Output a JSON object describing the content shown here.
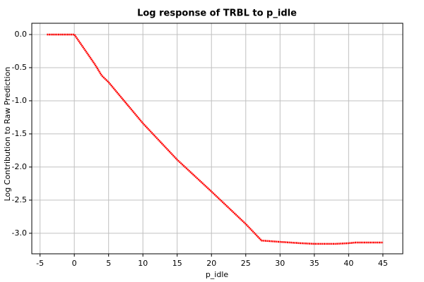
{
  "chart_data": {
    "type": "line",
    "title": "Log response of TRBL to p_idle",
    "x_label": "p_idle",
    "y_label": "Log Contribution to Raw Prediction",
    "x": [
      -4,
      0,
      1,
      3,
      4,
      5,
      10,
      15,
      20,
      25,
      27.3,
      30,
      33,
      35,
      38,
      40,
      41,
      45
    ],
    "series": [
      {
        "name": "p_idle",
        "color": "#ff0000",
        "values": [
          0,
          0,
          -0.15,
          -0.45,
          -0.62,
          -0.72,
          -1.34,
          -1.89,
          -2.37,
          -2.86,
          -3.11,
          -3.13,
          -3.15,
          -3.16,
          -3.16,
          -3.15,
          -3.14,
          -3.14
        ]
      }
    ],
    "xlim": [
      -6.2,
      47.9
    ],
    "ylim": [
      -3.31,
      0.17
    ],
    "xticks": [
      -5,
      0,
      5,
      10,
      15,
      20,
      25,
      30,
      35,
      40,
      45
    ],
    "yticks": [
      {
        "value": 0,
        "label": "0.0"
      },
      -0.5,
      {
        "value": -1,
        "label": "-1.0"
      },
      -1.5,
      {
        "value": -2,
        "label": "-2.0"
      },
      -2.5,
      {
        "value": -3,
        "label": "-3.0"
      }
    ],
    "grid": true
  }
}
